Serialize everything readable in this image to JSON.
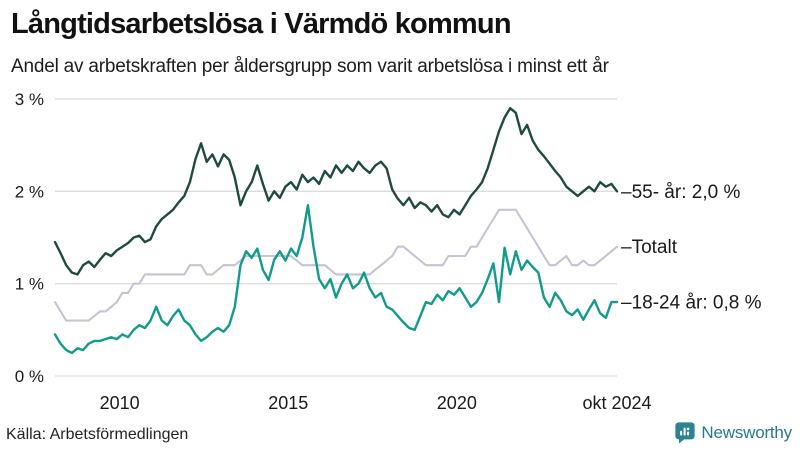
{
  "header": {
    "title": "Långtidsarbetslösa i Värmdö kommun",
    "subtitle": "Andel av arbetskraften per åldersgrupp som varit arbetslösa i minst ett år"
  },
  "footer": {
    "source": "Källa: Arbetsförmedlingen",
    "brand_name": "Newsworthy",
    "brand_color": "#26798a",
    "brand_icon": "newsworthy-bar-chart-bubble-icon"
  },
  "chart_data": {
    "type": "line",
    "title": "Långtidsarbetslösa i Värmdö kommun",
    "subtitle": "Andel av arbetskraften per åldersgrupp som varit arbetslösa i minst ett år",
    "xlabel": "",
    "ylabel": "",
    "grid": true,
    "grid_color": "#dcdcdc",
    "legend_position": "right-of-line-ends",
    "legend_dash": "–",
    "ylim": [
      0,
      3
    ],
    "xlim": [
      2008.083,
      2024.75
    ],
    "x_unit": "decimal-year (monthly series, one value every 2 months)",
    "x_start": 2008.083,
    "x_step": 0.166667,
    "y_ticks": [
      {
        "v": 0,
        "label": "0 %"
      },
      {
        "v": 1,
        "label": "1 %"
      },
      {
        "v": 2,
        "label": "2 %"
      },
      {
        "v": 3,
        "label": "3 %"
      }
    ],
    "x_ticks": [
      {
        "t": 2010,
        "label": "2010"
      },
      {
        "t": 2015,
        "label": "2015"
      },
      {
        "t": 2020,
        "label": "2020"
      },
      {
        "t": 2024.75,
        "label": "okt 2024"
      }
    ],
    "series": [
      {
        "name": "55- år",
        "end_label": "55- år: 2,0 %",
        "latest_value_pct": 2.0,
        "color": "#1f4a42",
        "width": 2.4,
        "z": 2,
        "values": [
          1.45,
          1.33,
          1.2,
          1.12,
          1.1,
          1.2,
          1.24,
          1.18,
          1.26,
          1.33,
          1.3,
          1.36,
          1.4,
          1.44,
          1.5,
          1.52,
          1.45,
          1.48,
          1.62,
          1.7,
          1.75,
          1.8,
          1.88,
          1.95,
          2.1,
          2.35,
          2.52,
          2.32,
          2.4,
          2.27,
          2.4,
          2.34,
          2.15,
          1.85,
          2.0,
          2.1,
          2.28,
          2.08,
          1.9,
          2.0,
          1.93,
          2.05,
          2.1,
          2.02,
          2.18,
          2.1,
          2.15,
          2.08,
          2.22,
          2.15,
          2.28,
          2.2,
          2.28,
          2.22,
          2.32,
          2.25,
          2.2,
          2.28,
          2.32,
          2.25,
          2.02,
          1.92,
          1.85,
          1.93,
          1.82,
          1.88,
          1.85,
          1.78,
          1.85,
          1.75,
          1.72,
          1.8,
          1.75,
          1.85,
          1.95,
          2.02,
          2.1,
          2.25,
          2.45,
          2.65,
          2.8,
          2.9,
          2.85,
          2.62,
          2.72,
          2.55,
          2.45,
          2.38,
          2.3,
          2.22,
          2.15,
          2.05,
          2.0,
          1.95,
          2.0,
          2.05,
          2.0,
          2.1,
          2.05,
          2.08,
          2.0
        ]
      },
      {
        "name": "Totalt",
        "end_label": "Totalt",
        "latest_value_pct": 1.4,
        "color": "#c6c3d2",
        "width": 2.1,
        "z": 1,
        "values": [
          0.8,
          0.7,
          0.6,
          0.6,
          0.6,
          0.6,
          0.6,
          0.65,
          0.7,
          0.7,
          0.75,
          0.8,
          0.9,
          0.9,
          1.0,
          1.0,
          1.1,
          1.1,
          1.1,
          1.1,
          1.1,
          1.1,
          1.1,
          1.1,
          1.2,
          1.2,
          1.2,
          1.1,
          1.1,
          1.15,
          1.2,
          1.2,
          1.2,
          1.25,
          1.3,
          1.3,
          1.3,
          1.3,
          1.3,
          1.3,
          1.3,
          1.3,
          1.3,
          1.25,
          1.2,
          1.2,
          1.2,
          1.2,
          1.2,
          1.15,
          1.1,
          1.1,
          1.1,
          1.1,
          1.1,
          1.1,
          1.1,
          1.15,
          1.2,
          1.25,
          1.3,
          1.4,
          1.4,
          1.35,
          1.3,
          1.25,
          1.2,
          1.2,
          1.2,
          1.2,
          1.3,
          1.3,
          1.3,
          1.3,
          1.4,
          1.4,
          1.5,
          1.6,
          1.7,
          1.8,
          1.8,
          1.8,
          1.8,
          1.7,
          1.6,
          1.5,
          1.4,
          1.3,
          1.2,
          1.2,
          1.25,
          1.3,
          1.2,
          1.2,
          1.25,
          1.2,
          1.2,
          1.25,
          1.3,
          1.35,
          1.4
        ]
      },
      {
        "name": "18-24 år",
        "end_label": "18-24 år: 0,8 %",
        "latest_value_pct": 0.8,
        "color": "#129a8b",
        "width": 2.4,
        "z": 3,
        "values": [
          0.45,
          0.35,
          0.28,
          0.25,
          0.3,
          0.28,
          0.35,
          0.38,
          0.38,
          0.4,
          0.42,
          0.4,
          0.45,
          0.42,
          0.5,
          0.55,
          0.52,
          0.6,
          0.75,
          0.6,
          0.55,
          0.65,
          0.72,
          0.6,
          0.55,
          0.45,
          0.38,
          0.42,
          0.48,
          0.52,
          0.48,
          0.55,
          0.75,
          1.2,
          1.35,
          1.28,
          1.38,
          1.15,
          1.04,
          1.26,
          1.35,
          1.25,
          1.38,
          1.3,
          1.5,
          1.85,
          1.4,
          1.05,
          0.95,
          1.05,
          0.85,
          1.0,
          1.1,
          0.95,
          1.0,
          1.12,
          0.95,
          0.85,
          0.9,
          0.75,
          0.72,
          0.65,
          0.58,
          0.52,
          0.5,
          0.65,
          0.8,
          0.78,
          0.88,
          0.82,
          0.92,
          0.88,
          0.95,
          0.85,
          0.75,
          0.8,
          0.9,
          1.05,
          1.22,
          0.8,
          1.39,
          1.1,
          1.35,
          1.15,
          1.25,
          1.18,
          1.12,
          0.85,
          0.75,
          0.9,
          0.82,
          0.7,
          0.66,
          0.72,
          0.61,
          0.72,
          0.82,
          0.68,
          0.63,
          0.8,
          0.8
        ]
      }
    ],
    "text_color": "#1a1a1a",
    "axis_label_color": "#1a1a1a"
  }
}
